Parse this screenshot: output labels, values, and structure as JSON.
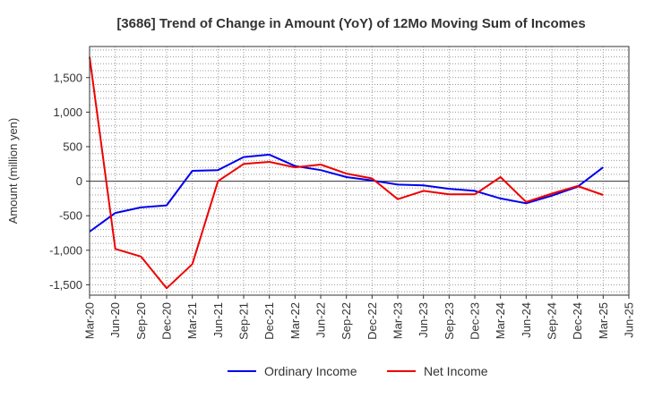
{
  "chart_data": {
    "type": "line",
    "title": "[3686]  Trend of Change in Amount (YoY) of 12Mo Moving Sum of Incomes",
    "xlabel": "",
    "ylabel": "Amount (million yen)",
    "ylim": [
      -1650,
      1950
    ],
    "yticks": [
      -1500,
      -1000,
      -500,
      0,
      500,
      1000,
      1500
    ],
    "ytick_labels": [
      "-1,500",
      "-1,000",
      "-500",
      "0",
      "500",
      "1,000",
      "1,500"
    ],
    "categories": [
      "Mar-20",
      "Jun-20",
      "Sep-20",
      "Dec-20",
      "Mar-21",
      "Jun-21",
      "Sep-21",
      "Dec-21",
      "Mar-22",
      "Jun-22",
      "Sep-22",
      "Dec-22",
      "Mar-23",
      "Jun-23",
      "Sep-23",
      "Dec-23",
      "Mar-24",
      "Jun-24",
      "Sep-24",
      "Dec-24",
      "Mar-25",
      "Jun-25"
    ],
    "grid": true,
    "legend_position": "bottom",
    "series": [
      {
        "name": "Ordinary Income",
        "color": "#0000ee",
        "values": [
          -730,
          -460,
          -380,
          -350,
          150,
          160,
          350,
          385,
          220,
          160,
          60,
          10,
          -50,
          -60,
          -110,
          -140,
          -250,
          -320,
          -210,
          -80,
          200,
          null
        ]
      },
      {
        "name": "Net Income",
        "color": "#ee0000",
        "values": [
          1800,
          -980,
          -1090,
          -1550,
          -1200,
          0,
          250,
          280,
          200,
          240,
          110,
          40,
          -260,
          -140,
          -190,
          -190,
          60,
          -300,
          -180,
          -70,
          -200,
          null
        ]
      }
    ]
  }
}
